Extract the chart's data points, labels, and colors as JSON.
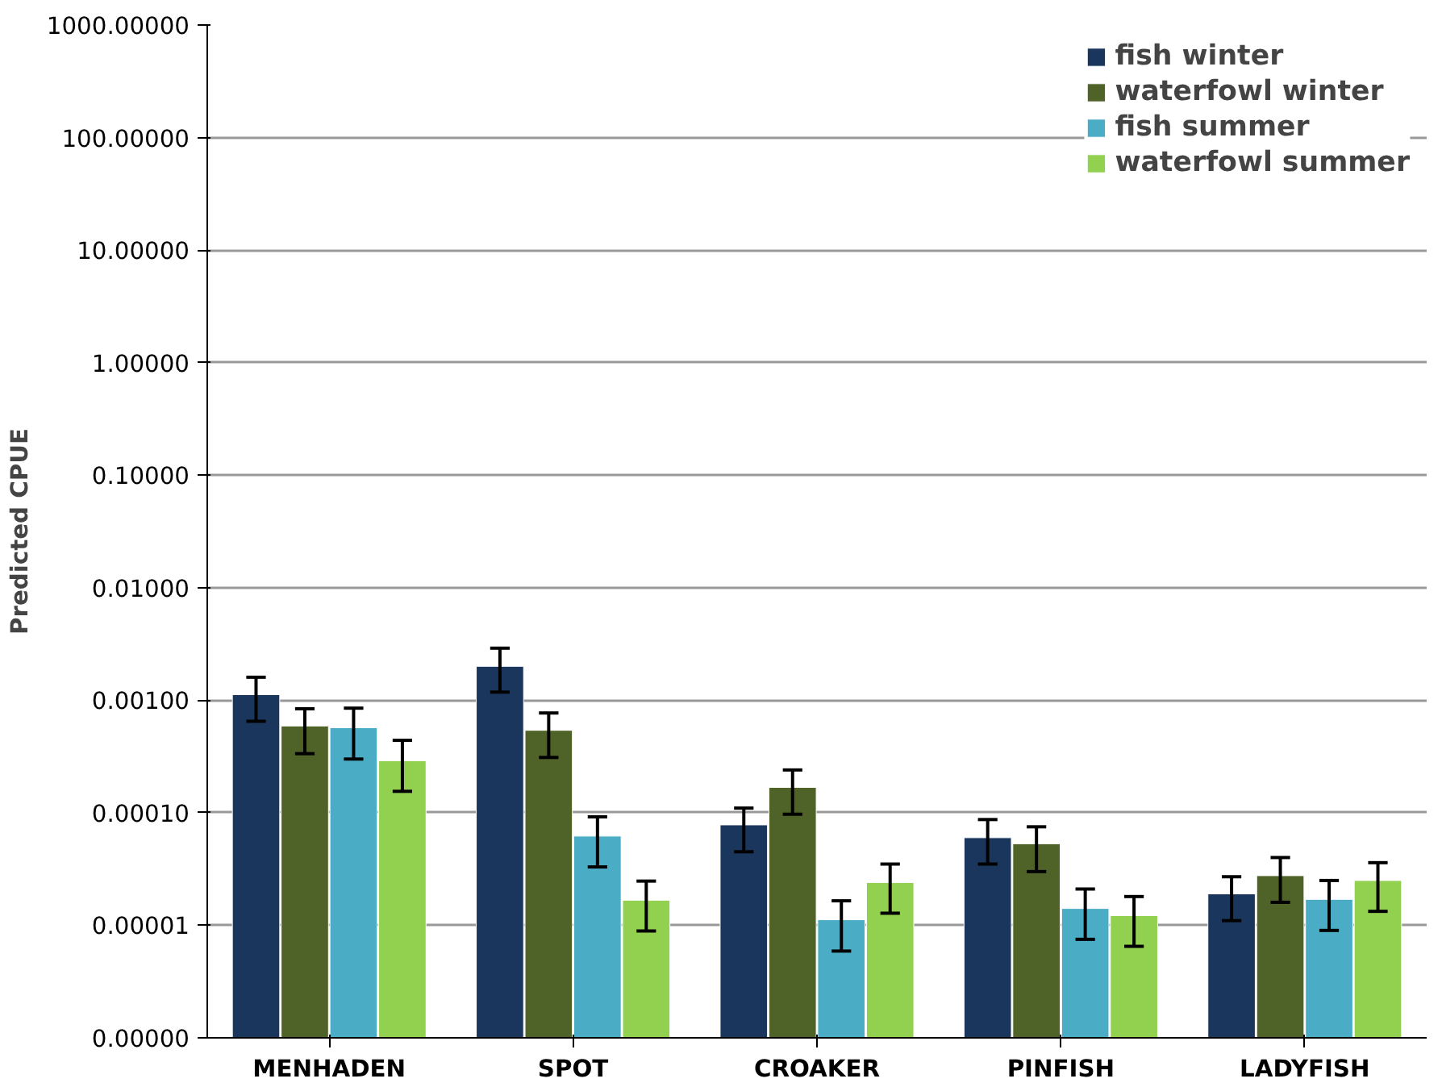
{
  "chart_data": {
    "type": "bar",
    "ylabel": "Predicted CPUE",
    "log": true,
    "grid": "y",
    "legend": "top right",
    "categories": [
      "MENHADEN",
      "SPOT",
      "CROAKER",
      "PINFISH",
      "LADYFISH"
    ],
    "ylim": [
      1e-06,
      1000
    ],
    "yticks": [
      {
        "value": 1e-06,
        "label": "0.00000"
      },
      {
        "value": 1e-05,
        "label": "0.00001"
      },
      {
        "value": 0.0001,
        "label": "0.00010"
      },
      {
        "value": 0.001,
        "label": "0.00100"
      },
      {
        "value": 0.01,
        "label": "0.01000"
      },
      {
        "value": 0.1,
        "label": "0.10000"
      },
      {
        "value": 1,
        "label": "1.00000"
      },
      {
        "value": 10,
        "label": "10.00000"
      },
      {
        "value": 100,
        "label": "100.00000"
      },
      {
        "value": 1000,
        "label": "1000.00000"
      }
    ],
    "series": [
      {
        "name": "fish winter",
        "color": "#1b365d",
        "values": [
          0.00112,
          0.002,
          7.8e-05,
          6e-05,
          1.9e-05
        ],
        "errors": [
          [
            0.00065,
            0.0016
          ],
          [
            0.00118,
            0.0029
          ],
          [
            4.5e-05,
            0.00011
          ],
          [
            3.5e-05,
            8.7e-05
          ],
          [
            1.1e-05,
            2.7e-05
          ]
        ]
      },
      {
        "name": "waterfowl winter",
        "color": "#4f6228",
        "values": [
          0.00059,
          0.00054,
          0.000168,
          5.3e-05,
          2.76e-05
        ],
        "errors": [
          [
            0.000335,
            0.00084
          ],
          [
            0.00031,
            0.00077
          ],
          [
            9.7e-05,
            0.00024
          ],
          [
            3e-05,
            7.5e-05
          ],
          [
            1.6e-05,
            4e-05
          ]
        ]
      },
      {
        "name": "fish summer",
        "color": "#4bacc6",
        "values": [
          0.00057,
          6.2e-05,
          1.12e-05,
          1.41e-05,
          1.7e-05
        ],
        "errors": [
          [
            0.0003,
            0.00085
          ],
          [
            3.3e-05,
            9.2e-05
          ],
          [
            5.9e-06,
            1.65e-05
          ],
          [
            7.5e-06,
            2.1e-05
          ],
          [
            9e-06,
            2.5e-05
          ]
        ]
      },
      {
        "name": "waterfowl summer",
        "color": "#92d050",
        "values": [
          0.00029,
          1.67e-05,
          2.4e-05,
          1.22e-05,
          2.5e-05
        ],
        "errors": [
          [
            0.000155,
            0.00044
          ],
          [
            8.9e-06,
            2.47e-05
          ],
          [
            1.28e-05,
            3.5e-05
          ],
          [
            6.5e-06,
            1.8e-05
          ],
          [
            1.33e-05,
            3.6e-05
          ]
        ]
      }
    ]
  }
}
